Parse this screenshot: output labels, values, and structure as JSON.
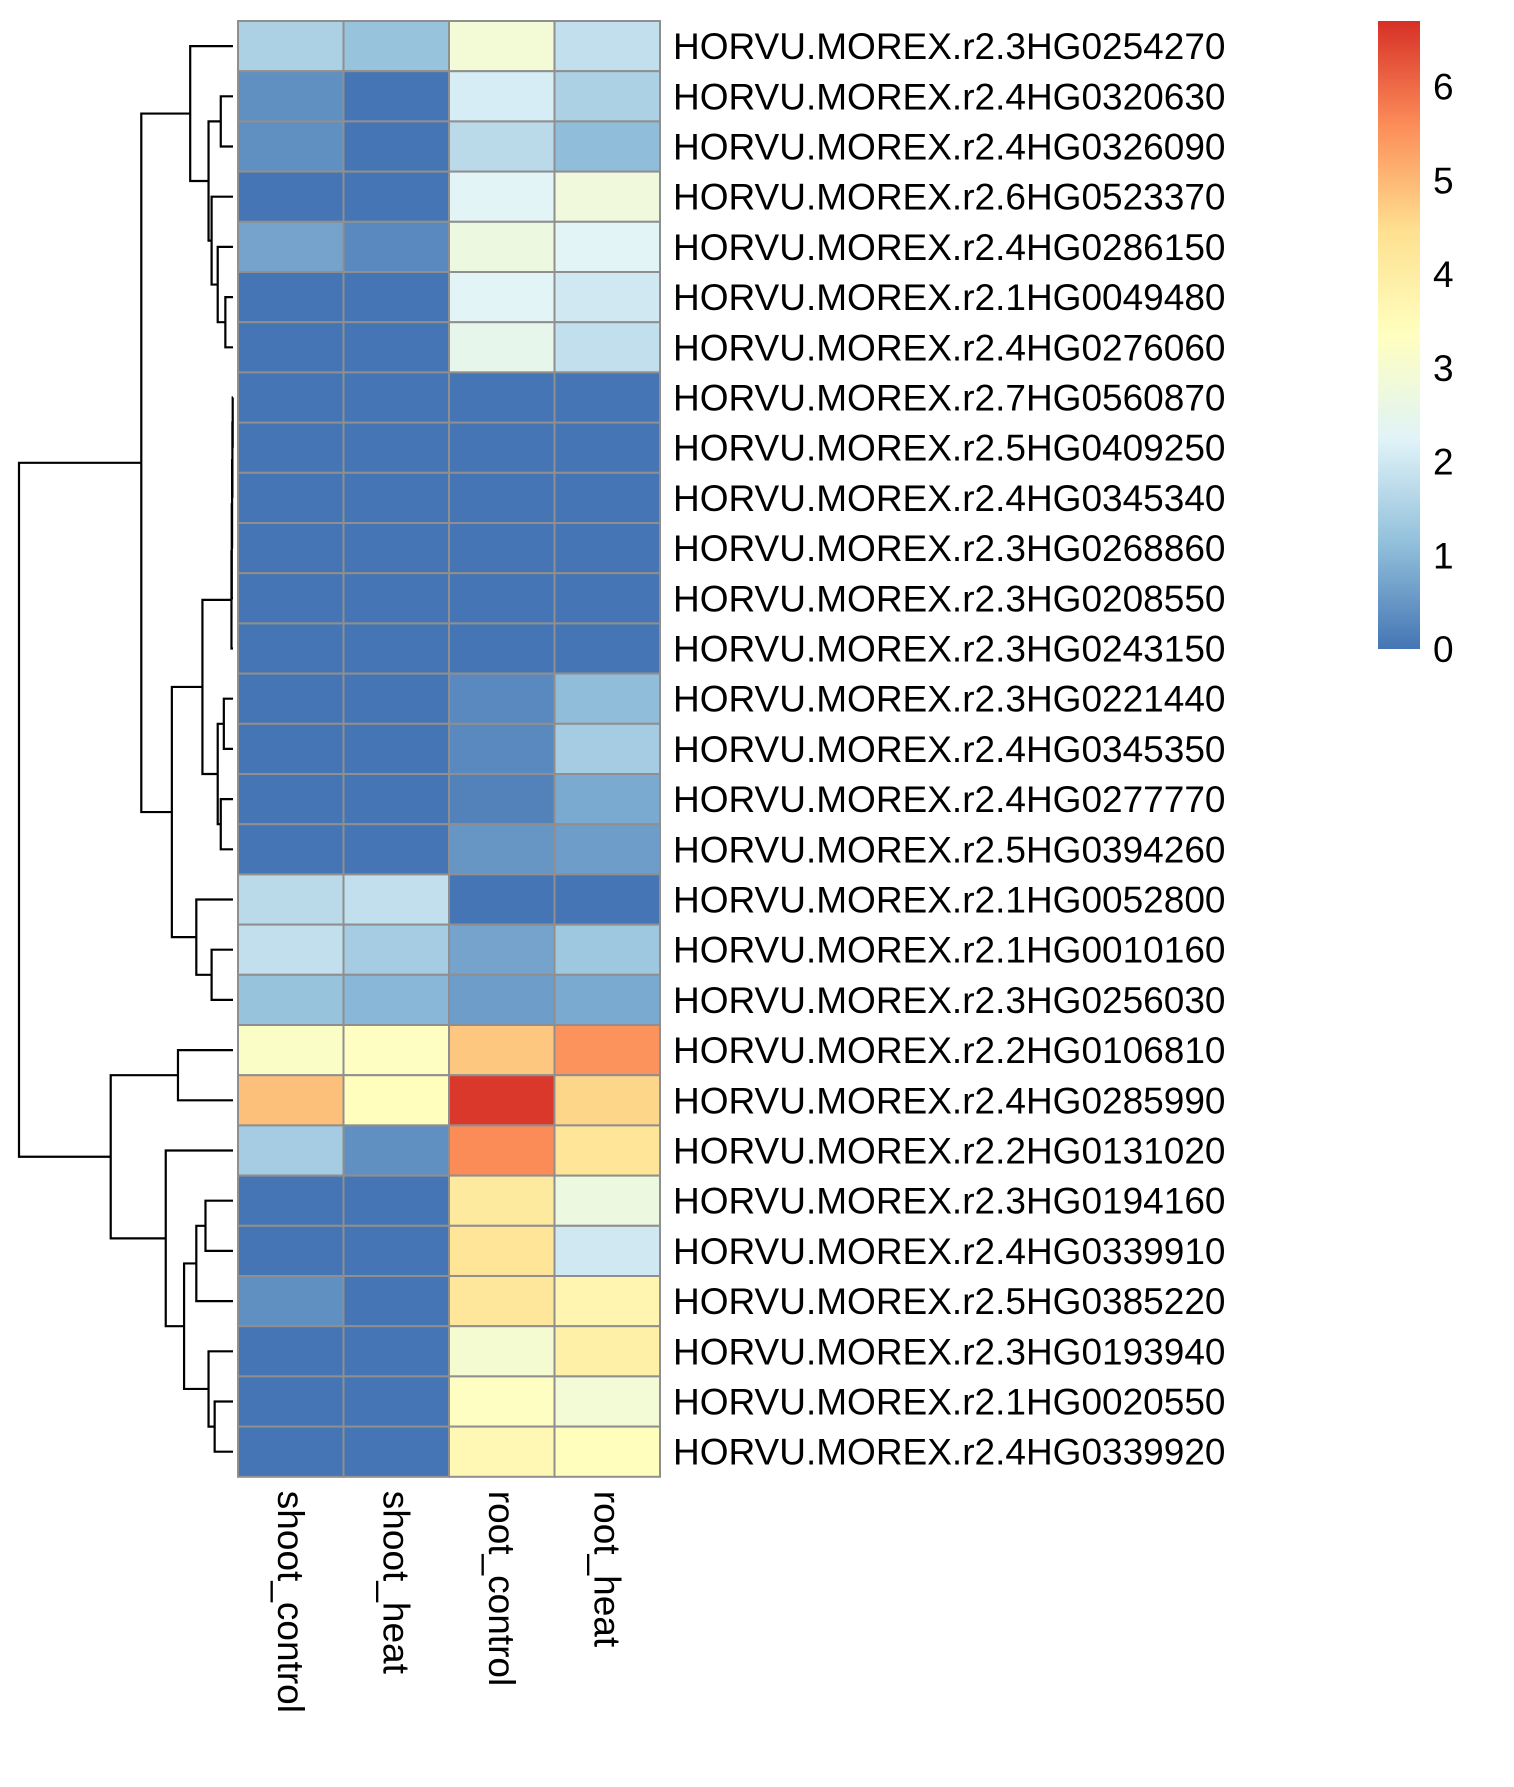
{
  "chart_data": {
    "type": "heatmap",
    "columns": [
      "shoot_control",
      "shoot_heat",
      "root_control",
      "root_heat"
    ],
    "rows": [
      "HORVU.MOREX.r2.3HG0254270",
      "HORVU.MOREX.r2.4HG0320630",
      "HORVU.MOREX.r2.4HG0326090",
      "HORVU.MOREX.r2.6HG0523370",
      "HORVU.MOREX.r2.4HG0286150",
      "HORVU.MOREX.r2.1HG0049480",
      "HORVU.MOREX.r2.4HG0276060",
      "HORVU.MOREX.r2.7HG0560870",
      "HORVU.MOREX.r2.5HG0409250",
      "HORVU.MOREX.r2.4HG0345340",
      "HORVU.MOREX.r2.3HG0268860",
      "HORVU.MOREX.r2.3HG0208550",
      "HORVU.MOREX.r2.3HG0243150",
      "HORVU.MOREX.r2.3HG0221440",
      "HORVU.MOREX.r2.4HG0345350",
      "HORVU.MOREX.r2.4HG0277770",
      "HORVU.MOREX.r2.5HG0394260",
      "HORVU.MOREX.r2.1HG0052800",
      "HORVU.MOREX.r2.1HG0010160",
      "HORVU.MOREX.r2.3HG0256030",
      "HORVU.MOREX.r2.2HG0106810",
      "HORVU.MOREX.r2.4HG0285990",
      "HORVU.MOREX.r2.2HG0131020",
      "HORVU.MOREX.r2.3HG0194160",
      "HORVU.MOREX.r2.4HG0339910",
      "HORVU.MOREX.r2.5HG0385220",
      "HORVU.MOREX.r2.3HG0193940",
      "HORVU.MOREX.r2.1HG0020550",
      "HORVU.MOREX.r2.4HG0339920"
    ],
    "values": [
      [
        1.5,
        1.2,
        2.9,
        1.8
      ],
      [
        0.4,
        0.0,
        2.1,
        1.5
      ],
      [
        0.4,
        0.0,
        1.7,
        1.1
      ],
      [
        0.0,
        0.0,
        2.3,
        2.8
      ],
      [
        0.7,
        0.3,
        2.7,
        2.3
      ],
      [
        0.0,
        0.0,
        2.3,
        2.0
      ],
      [
        0.0,
        0.0,
        2.5,
        1.8
      ],
      [
        0.0,
        0.0,
        0.0,
        0.0
      ],
      [
        0.0,
        0.0,
        0.0,
        0.0
      ],
      [
        0.0,
        0.0,
        0.0,
        0.0
      ],
      [
        0.0,
        0.0,
        0.0,
        0.0
      ],
      [
        0.0,
        0.0,
        0.0,
        0.0
      ],
      [
        0.0,
        0.0,
        0.0,
        0.0
      ],
      [
        0.0,
        0.0,
        0.3,
        1.1
      ],
      [
        0.0,
        0.0,
        0.3,
        1.4
      ],
      [
        0.0,
        0.0,
        0.2,
        0.8
      ],
      [
        0.0,
        0.0,
        0.5,
        0.6
      ],
      [
        1.7,
        1.8,
        0.0,
        0.0
      ],
      [
        1.8,
        1.4,
        0.7,
        1.3
      ],
      [
        1.2,
        1.0,
        0.6,
        0.8
      ],
      [
        3.2,
        3.3,
        4.8,
        5.5
      ],
      [
        4.9,
        3.4,
        6.6,
        4.6
      ],
      [
        1.4,
        0.4,
        5.6,
        4.3
      ],
      [
        0.0,
        0.0,
        4.1,
        2.7
      ],
      [
        0.0,
        0.0,
        4.3,
        2.0
      ],
      [
        0.4,
        0.0,
        4.2,
        3.7
      ],
      [
        0.0,
        0.0,
        3.0,
        3.9
      ],
      [
        0.0,
        0.0,
        3.3,
        2.9
      ],
      [
        0.0,
        0.0,
        3.6,
        3.4
      ]
    ],
    "colorbar": {
      "min": 0,
      "max": 6.7,
      "ticks": [
        "0",
        "1",
        "2",
        "3",
        "4",
        "5",
        "6"
      ],
      "colors": [
        "#4575B4",
        "#91BFDB",
        "#E0F3F8",
        "#FFFFBF",
        "#FEE090",
        "#FC8D59",
        "#D73027"
      ]
    },
    "row_dendrogram": {
      "order": [
        0,
        1,
        2,
        3,
        4,
        5,
        6,
        7,
        8,
        9,
        10,
        11,
        12,
        13,
        14,
        15,
        16,
        17,
        18,
        19,
        20,
        21,
        22,
        23,
        24,
        25,
        26,
        27,
        28
      ],
      "merges": [
        [
          -2,
          -3,
          0.4
        ],
        [
          -6,
          -7,
          0.25
        ],
        [
          -5,
          2,
          0.5
        ],
        [
          -4,
          3,
          0.7
        ],
        [
          1,
          4,
          0.8
        ],
        [
          -1,
          5,
          1.4
        ],
        [
          -8,
          -9,
          0.01
        ],
        [
          -10,
          7,
          0.02
        ],
        [
          -11,
          8,
          0.03
        ],
        [
          -12,
          9,
          0.04
        ],
        [
          -13,
          10,
          0.05
        ],
        [
          -14,
          -15,
          0.3
        ],
        [
          -16,
          -17,
          0.4
        ],
        [
          12,
          13,
          0.5
        ],
        [
          11,
          14,
          1.0
        ],
        [
          -19,
          -20,
          0.7
        ],
        [
          -18,
          16,
          1.2
        ],
        [
          15,
          17,
          2.0
        ],
        [
          6,
          18,
          3.0
        ],
        [
          -21,
          -22,
          1.8
        ],
        [
          -24,
          -25,
          0.9
        ],
        [
          -26,
          21,
          1.2
        ],
        [
          -28,
          -29,
          0.6
        ],
        [
          -27,
          23,
          0.8
        ],
        [
          22,
          24,
          1.6
        ],
        [
          -23,
          25,
          2.2
        ],
        [
          20,
          26,
          4.0
        ],
        [
          19,
          27,
          7.0
        ]
      ]
    }
  }
}
